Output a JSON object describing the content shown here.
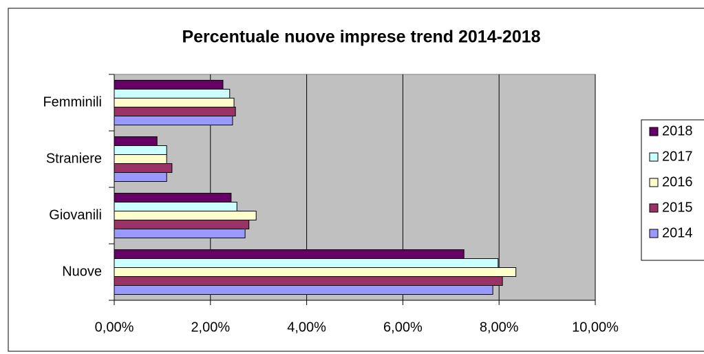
{
  "chart_data": {
    "type": "hbar",
    "title": "Percentuale nuove imprese trend 2014-2018",
    "categories": [
      "Nuove",
      "Giovanili",
      "Straniere",
      "Femminili"
    ],
    "series": [
      {
        "name": "2014",
        "color": "#9999ff",
        "values": [
          7.87,
          2.72,
          1.09,
          2.46
        ]
      },
      {
        "name": "2015",
        "color": "#993366",
        "values": [
          8.07,
          2.8,
          1.2,
          2.52
        ]
      },
      {
        "name": "2016",
        "color": "#ffffcc",
        "values": [
          8.35,
          2.95,
          1.09,
          2.49
        ]
      },
      {
        "name": "2017",
        "color": "#ccffff",
        "values": [
          7.98,
          2.55,
          1.09,
          2.4
        ]
      },
      {
        "name": "2018",
        "color": "#660066",
        "values": [
          7.27,
          2.43,
          0.89,
          2.26
        ]
      }
    ],
    "xlim": [
      0,
      10
    ],
    "xticks": [
      {
        "value": 0,
        "label": "0,00%"
      },
      {
        "value": 2,
        "label": "2,00%"
      },
      {
        "value": 4,
        "label": "4,00%"
      },
      {
        "value": 6,
        "label": "6,00%"
      },
      {
        "value": 8,
        "label": "8,00%"
      },
      {
        "value": 10,
        "label": "10,00%"
      }
    ],
    "grid": true,
    "legend": "right"
  }
}
